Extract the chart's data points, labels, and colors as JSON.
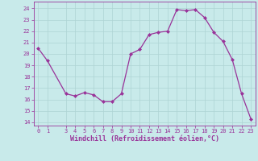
{
  "x": [
    0,
    1,
    3,
    4,
    5,
    6,
    7,
    8,
    9,
    10,
    11,
    12,
    13,
    14,
    15,
    16,
    17,
    18,
    19,
    20,
    21,
    22,
    23
  ],
  "y": [
    20.5,
    19.4,
    16.5,
    16.3,
    16.6,
    16.4,
    15.8,
    15.8,
    16.5,
    20.0,
    20.4,
    21.7,
    21.9,
    22.0,
    23.9,
    23.8,
    23.9,
    23.2,
    21.9,
    21.1,
    19.5,
    16.5,
    14.3
  ],
  "line_color": "#993399",
  "marker_color": "#993399",
  "bg_color": "#c8eaea",
  "grid_color": "#aed4d4",
  "xlabel": "Windchill (Refroidissement éolien,°C)",
  "tick_color": "#993399",
  "yticks": [
    14,
    15,
    16,
    17,
    18,
    19,
    20,
    21,
    22,
    23,
    24
  ],
  "xticks": [
    0,
    1,
    3,
    4,
    5,
    6,
    7,
    8,
    9,
    10,
    11,
    12,
    13,
    14,
    15,
    16,
    17,
    18,
    19,
    20,
    21,
    22,
    23
  ],
  "xlim": [
    -0.5,
    23.5
  ],
  "ylim": [
    13.7,
    24.6
  ],
  "figsize": [
    3.2,
    2.0
  ],
  "dpi": 100
}
